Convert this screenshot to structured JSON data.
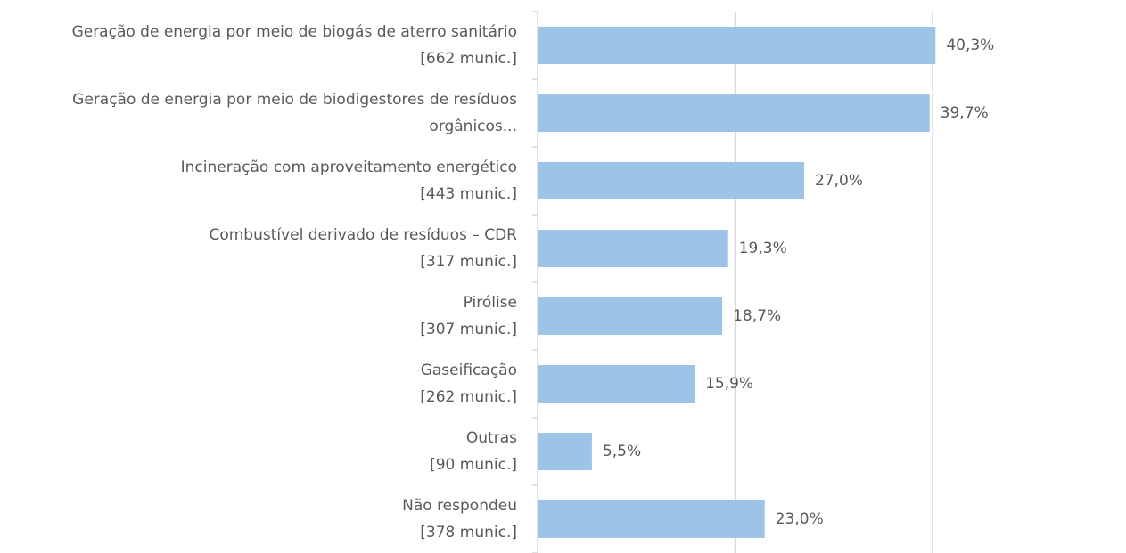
{
  "chart_data": {
    "type": "barh",
    "categories": [
      [
        "Geração de energia por meio de biogás de aterro sanitário",
        "[662 munic.]"
      ],
      [
        "Geração de energia por meio de biodigestores de resíduos",
        "orgânicos..."
      ],
      [
        "Incineração com aproveitamento energético",
        "[443 munic.]"
      ],
      [
        "Combustível derivado de resíduos – CDR",
        "[317 munic.]"
      ],
      [
        "Pirólise",
        "[307 munic.]"
      ],
      [
        "Gaseificação",
        "[262 munic.]"
      ],
      [
        "Outras",
        "[90 munic.]"
      ],
      [
        "Não respondeu",
        "[378 munic.]"
      ]
    ],
    "values": [
      40.3,
      39.7,
      27.0,
      19.3,
      18.7,
      15.9,
      5.5,
      23.0
    ],
    "value_labels": [
      "40,3%",
      "39,7%",
      "27,0%",
      "19,3%",
      "18,7%",
      "15,9%",
      "5,5%",
      "23,0%"
    ],
    "color": "#9dc3e6",
    "xlim": [
      0,
      40
    ],
    "xticks": [
      0,
      20,
      40
    ],
    "grid": true
  }
}
